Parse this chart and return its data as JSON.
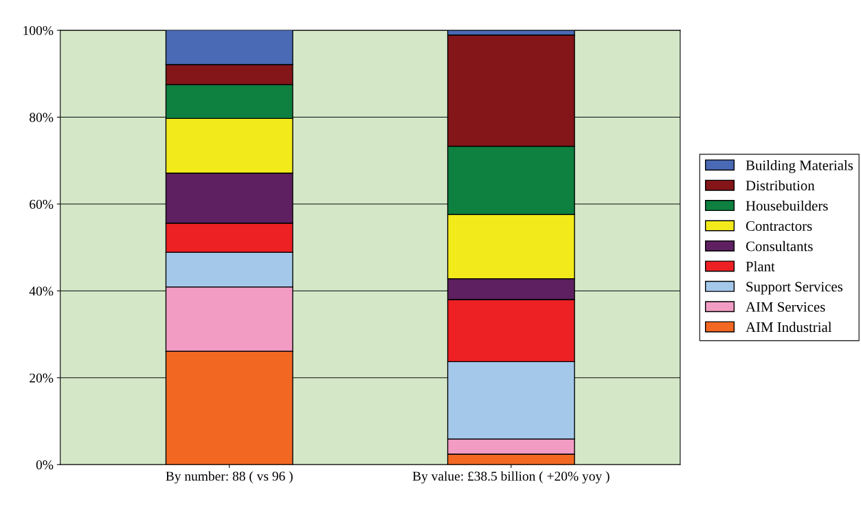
{
  "chart_data": {
    "type": "bar",
    "stacked": true,
    "categories": [
      "By number: 88 ( vs 96 )",
      "By value: £38.5 billion ( +20% yoy )"
    ],
    "series": [
      {
        "name": "AIM Industrial",
        "color": "#f26822",
        "values": [
          26.1,
          2.4
        ]
      },
      {
        "name": "AIM Services",
        "color": "#f29cc4",
        "values": [
          14.8,
          3.5
        ]
      },
      {
        "name": "Support Services",
        "color": "#a4c8ea",
        "values": [
          8.0,
          17.8
        ]
      },
      {
        "name": "Plant",
        "color": "#ed2024",
        "values": [
          6.7,
          14.3
        ]
      },
      {
        "name": "Consultants",
        "color": "#5e2060",
        "values": [
          11.5,
          4.8
        ]
      },
      {
        "name": "Contractors",
        "color": "#f2ea1a",
        "values": [
          12.6,
          14.8
        ]
      },
      {
        "name": "Housebuilders",
        "color": "#0e8040",
        "values": [
          7.8,
          15.7
        ]
      },
      {
        "name": "Distribution",
        "color": "#841518",
        "values": [
          4.6,
          25.6
        ]
      },
      {
        "name": "Building Materials",
        "color": "#4a6ab5",
        "values": [
          8.0,
          1.1
        ]
      }
    ],
    "ylim": [
      0,
      100
    ],
    "yticks": [
      {
        "value": 0,
        "label": "0%"
      },
      {
        "value": 20,
        "label": "20%"
      },
      {
        "value": 40,
        "label": "40%"
      },
      {
        "value": 60,
        "label": "60%"
      },
      {
        "value": 80,
        "label": "80%"
      },
      {
        "value": 100,
        "label": "100%"
      }
    ],
    "grid": "y",
    "legend": "right"
  }
}
